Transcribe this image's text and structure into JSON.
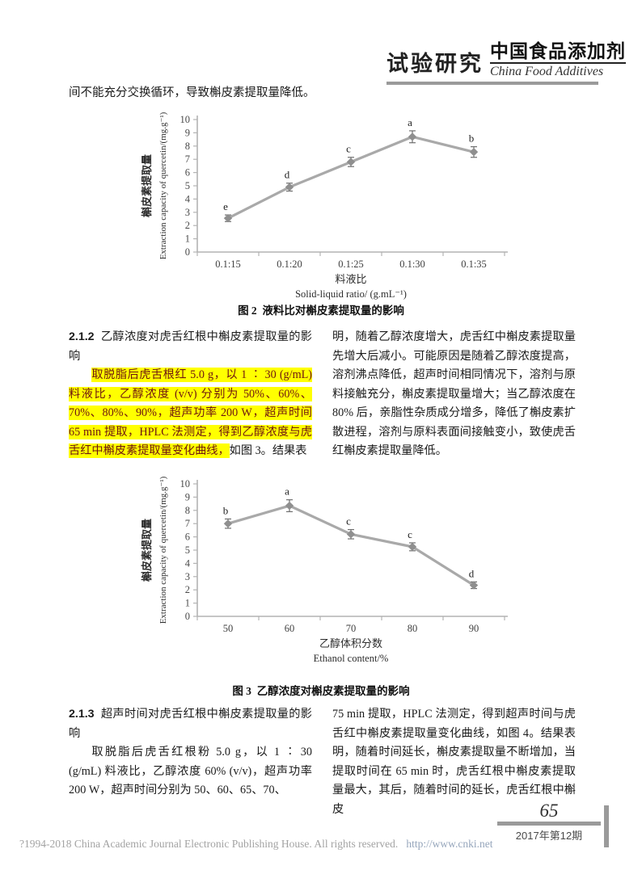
{
  "header": {
    "section_label": "试验研究",
    "journal_cn": "中国食品添加剂",
    "journal_en": "China Food Additives"
  },
  "intro_text": "间不能充分交换循环，导致槲皮素提取量降低。",
  "figures": {
    "fig2_caption_prefix": "图 2",
    "fig2_caption": "液料比对槲皮素提取量的影响",
    "fig3_caption_prefix": "图 3",
    "fig3_caption": "乙醇浓度对槲皮素提取量的影响"
  },
  "chart_data": [
    {
      "type": "line",
      "title": "图2 液料比对槲皮素提取量的影响",
      "categories": [
        "0.1:15",
        "0.1:20",
        "0.1:25",
        "0.1:30",
        "0.1:35"
      ],
      "values": [
        2.55,
        4.9,
        6.8,
        8.7,
        7.55
      ],
      "errors": [
        0.25,
        0.3,
        0.35,
        0.45,
        0.4
      ],
      "point_labels": [
        "e",
        "d",
        "c",
        "a",
        "b"
      ],
      "xlabel_cn": "料液比",
      "xlabel_en": "Solid-liquid ratio/ (g.mL⁻¹)",
      "ylabel_cn": "槲皮素提取量",
      "ylabel_en": "Extraction capacity of quercetin/(mg.g⁻¹)",
      "ylim": [
        0,
        10
      ],
      "ytick_step": 1,
      "grid": false,
      "legend": "none",
      "line_color": "#a9a9a9",
      "marker_color": "#8f8f8f",
      "error_color": "#6f6f6f",
      "axis_color": "#b3b3b3"
    },
    {
      "type": "line",
      "title": "图3 乙醇浓度对槲皮素提取量的影响",
      "categories": [
        "50",
        "60",
        "70",
        "80",
        "90"
      ],
      "values": [
        7.0,
        8.35,
        6.2,
        5.25,
        2.35
      ],
      "errors": [
        0.35,
        0.45,
        0.35,
        0.3,
        0.25
      ],
      "point_labels": [
        "b",
        "a",
        "c",
        "c",
        "d"
      ],
      "xlabel_cn": "乙醇体积分数",
      "xlabel_en": "Ethanol content/%",
      "ylabel_cn": "槲皮素提取量",
      "ylabel_en": "Extraction capacity of quercetin/(mg.g⁻¹)",
      "ylim": [
        0,
        10
      ],
      "ytick_step": 1,
      "grid": false,
      "legend": "none",
      "line_color": "#a9a9a9",
      "marker_color": "#8f8f8f",
      "error_color": "#6f6f6f",
      "axis_color": "#b3b3b3"
    }
  ],
  "sections": {
    "s212": {
      "number": "2.1.2",
      "title": "乙醇浓度对虎舌红根中槲皮素提取量的影响",
      "highlight_text": "取脱脂后虎舌根红 5.0 g，以 1 ∶ 30 (g/mL) 料液比，乙醇浓度 (v/v) 分别为 50%、60%、70%、80%、90%，超声功率 200 W，超声时间 65 min 提取，HPLC 法测定，得到乙醇浓度与虎舌红中槲皮素提取量变化曲线，",
      "after_highlight": "如图 3。结果表",
      "right_column": "明，随着乙醇浓度增大，虎舌红中槲皮素提取量先增大后减小。可能原因是随着乙醇浓度提高，溶剂沸点降低，超声时间相同情况下，溶剂与原料接触充分，槲皮素提取量增大；当乙醇浓度在 80% 后，亲脂性杂质成分增多，降低了槲皮素扩散进程，溶剂与原料表面间接触变小，致使虎舌红槲皮素提取量降低。"
    },
    "s213": {
      "number": "2.1.3",
      "title": "超声时间对虎舌红根中槲皮素提取量的影响",
      "left_paragraph": "取脱脂后虎舌红根粉 5.0 g，以 1 ∶ 30 (g/mL) 料液比，乙醇浓度 60% (v/v)，超声功率 200 W，超声时间分别为 50、60、65、70、",
      "right_column": "75 min 提取，HPLC 法测定，得到超声时间与虎舌红中槲皮素提取量变化曲线，如图 4。结果表明，随着时间延长，槲皮素提取量不断增加，当提取时间在 65 min 时，虎舌红根中槲皮素提取量最大，其后，随着时间的延长，虎舌红根中槲皮"
    }
  },
  "footer": {
    "page_number": "65",
    "issue": "2017年第12期",
    "copyright": "?1994-2018 China Academic Journal Electronic Publishing House. All rights reserved.",
    "url": "http://www.cnki.net"
  }
}
